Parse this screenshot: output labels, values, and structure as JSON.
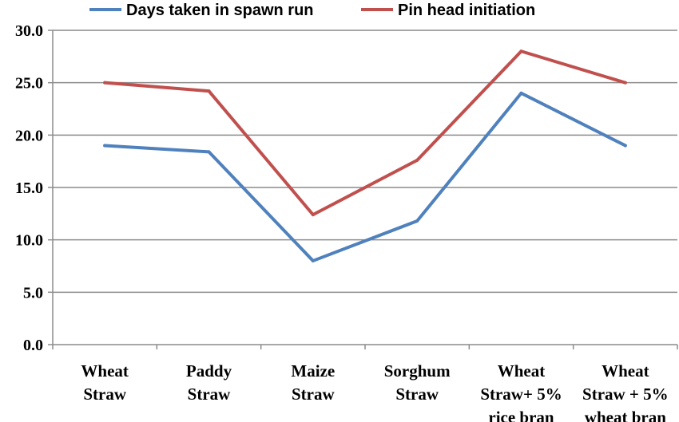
{
  "chart_data": {
    "type": "line",
    "title": "",
    "xlabel": "",
    "ylabel": "",
    "categories": [
      [
        "Wheat",
        "Straw"
      ],
      [
        "Paddy",
        "Straw"
      ],
      [
        "Maize",
        "Straw"
      ],
      [
        "Sorghum",
        "Straw"
      ],
      [
        "Wheat",
        "Straw+ 5%",
        "rice bran"
      ],
      [
        "Wheat",
        "Straw + 5%",
        "wheat bran"
      ]
    ],
    "series": [
      {
        "name": "Days taken in spawn run",
        "color": "#4F81BD",
        "values": [
          19.0,
          18.4,
          8.0,
          11.8,
          24.0,
          19.0
        ]
      },
      {
        "name": "Pin head initiation",
        "color": "#C0504D",
        "values": [
          25.0,
          24.2,
          12.4,
          17.6,
          28.0,
          25.0
        ]
      }
    ],
    "ylim": [
      0,
      30
    ],
    "yticks": [
      "0.0",
      "5.0",
      "10.0",
      "15.0",
      "20.0",
      "25.0",
      "30.0"
    ],
    "grid": true,
    "legend": "top"
  }
}
